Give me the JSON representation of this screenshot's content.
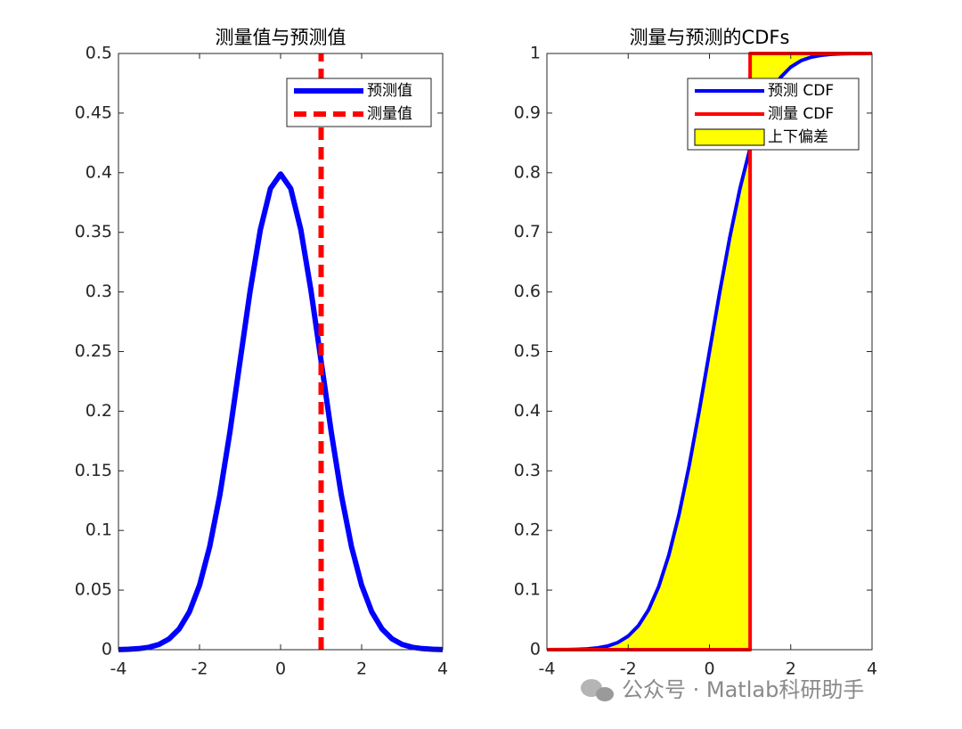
{
  "chart_data": [
    {
      "type": "line",
      "title": "测量值与预测值",
      "xlim": [
        -4,
        4
      ],
      "xticks": [
        -4,
        -2,
        0,
        2,
        4
      ],
      "ylim": [
        0,
        0.5
      ],
      "yticks": [
        0,
        0.05,
        0.1,
        0.15,
        0.2,
        0.25,
        0.3,
        0.35,
        0.4,
        0.45,
        0.5
      ],
      "legend": "top-right",
      "series": [
        {
          "name": "预测值",
          "color": "#0000ff",
          "linestyle": "solid",
          "x": [
            -4,
            -3.75,
            -3.5,
            -3.25,
            -3,
            -2.75,
            -2.5,
            -2.25,
            -2,
            -1.75,
            -1.5,
            -1.25,
            -1,
            -0.75,
            -0.5,
            -0.25,
            0,
            0.25,
            0.5,
            0.75,
            1,
            1.25,
            1.5,
            1.75,
            2,
            2.25,
            2.5,
            2.75,
            3,
            3.25,
            3.5,
            3.75,
            4
          ],
          "values": [
            0.0001,
            0.0004,
            0.0009,
            0.002,
            0.0044,
            0.0091,
            0.0175,
            0.0317,
            0.054,
            0.0863,
            0.1295,
            0.1826,
            0.242,
            0.3011,
            0.3521,
            0.3867,
            0.3989,
            0.3867,
            0.3521,
            0.3011,
            0.242,
            0.1826,
            0.1295,
            0.0863,
            0.054,
            0.0317,
            0.0175,
            0.0091,
            0.0044,
            0.002,
            0.0009,
            0.0004,
            0.0001
          ]
        },
        {
          "name": "测量值",
          "color": "#ff0000",
          "linestyle": "dashed",
          "x": [
            1,
            1
          ],
          "values": [
            0,
            0.5
          ]
        }
      ]
    },
    {
      "type": "line",
      "title": "测量与预测的CDFs",
      "xlim": [
        -4,
        4
      ],
      "xticks": [
        -4,
        -2,
        0,
        2,
        4
      ],
      "ylim": [
        0,
        1
      ],
      "yticks": [
        0,
        0.1,
        0.2,
        0.3,
        0.4,
        0.5,
        0.6,
        0.7,
        0.8,
        0.9,
        1
      ],
      "legend": "top-right",
      "series": [
        {
          "name": "预测 CDF",
          "color": "#0000ff",
          "linestyle": "solid",
          "x": [
            -4,
            -3.75,
            -3.5,
            -3.25,
            -3,
            -2.75,
            -2.5,
            -2.25,
            -2,
            -1.75,
            -1.5,
            -1.25,
            -1,
            -0.75,
            -0.5,
            -0.25,
            0,
            0.25,
            0.5,
            0.75,
            1,
            1.25,
            1.5,
            1.75,
            2,
            2.25,
            2.5,
            2.75,
            3,
            3.25,
            3.5,
            3.75,
            4
          ],
          "values": [
            0,
            0.0001,
            0.0002,
            0.0006,
            0.0013,
            0.003,
            0.0062,
            0.0122,
            0.0228,
            0.0401,
            0.0668,
            0.1056,
            0.1587,
            0.2266,
            0.3085,
            0.4013,
            0.5,
            0.5987,
            0.6915,
            0.7734,
            0.8413,
            0.8944,
            0.9332,
            0.9599,
            0.9772,
            0.9878,
            0.9938,
            0.997,
            0.9987,
            0.9994,
            0.9998,
            0.9999,
            1
          ]
        },
        {
          "name": "测量 CDF",
          "color": "#ff0000",
          "linestyle": "solid",
          "x": [
            -4,
            1,
            1,
            4
          ],
          "values": [
            0,
            0,
            1,
            1
          ]
        },
        {
          "name": "上下偏差",
          "color": "#ffff00",
          "linestyle": "fill"
        }
      ]
    }
  ],
  "watermark": "公众号 · Matlab科研助手"
}
